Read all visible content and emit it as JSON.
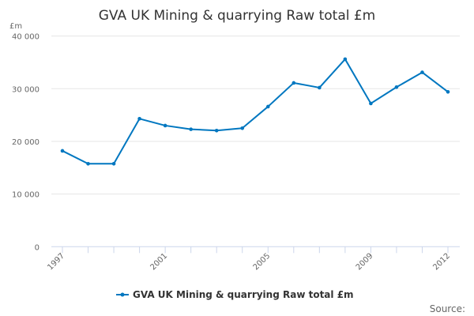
{
  "chart_data": {
    "type": "line",
    "title": "GVA UK Mining & quarrying Raw total £m",
    "ylabel": "£m",
    "xlabel": "",
    "x": [
      1997,
      1998,
      1999,
      2000,
      2001,
      2002,
      2003,
      2004,
      2005,
      2006,
      2007,
      2008,
      2009,
      2010,
      2011,
      2012
    ],
    "x_tick_labels": [
      "1997",
      "2001",
      "2005",
      "2009",
      "2012"
    ],
    "y_tick_labels": [
      "0",
      "10 000",
      "20 000",
      "30 000",
      "40 000"
    ],
    "ylim": [
      0,
      40000
    ],
    "grid": true,
    "legend_position": "bottom",
    "series": [
      {
        "name": "GVA UK Mining & quarrying Raw total £m",
        "color": "#0077c0",
        "values": [
          18200,
          15750,
          15750,
          24300,
          23000,
          22300,
          22050,
          22500,
          26600,
          31100,
          30200,
          35600,
          27200,
          30300,
          33100,
          29400
        ]
      }
    ],
    "source_label": "Source:"
  }
}
